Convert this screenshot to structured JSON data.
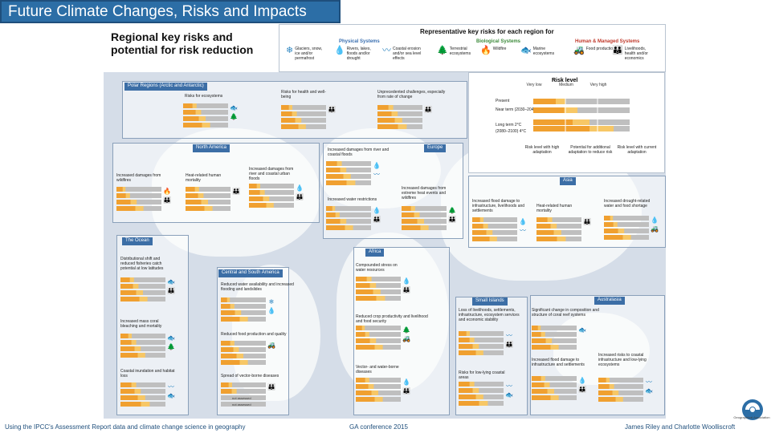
{
  "slide": {
    "title": "Future Climate Changes, Risks and Impacts",
    "heading": "Regional key risks and potential for risk reduction"
  },
  "key": {
    "title": "Representative key risks for each region for",
    "categories": [
      "Physical Systems",
      "Biological Systems",
      "Human & Managed Systems"
    ],
    "items": [
      {
        "icon": "snowflake-icon",
        "glyph": "❄",
        "color": "#2e86c1",
        "label": "Glaciers, snow, ice and/or permafrost"
      },
      {
        "icon": "water-drop-icon",
        "glyph": "💧",
        "color": "#2e86c1",
        "label": "Rivers, lakes, floods and/or drought"
      },
      {
        "icon": "coastal-icon",
        "glyph": "〰",
        "color": "#2e86c1",
        "label": "Coastal erosion and/or sea level effects"
      },
      {
        "icon": "tree-icon",
        "glyph": "🌲",
        "color": "#2e8b3a",
        "label": "Terrestrial ecosystems"
      },
      {
        "icon": "fire-icon",
        "glyph": "🔥",
        "color": "#2e8b3a",
        "label": "Wildfire"
      },
      {
        "icon": "fish-icon",
        "glyph": "🐟",
        "color": "#2e8b3a",
        "label": "Marine ecosystems"
      },
      {
        "icon": "tractor-icon",
        "glyph": "🚜",
        "color": "#c0392b",
        "label": "Food production"
      },
      {
        "icon": "people-icon",
        "glyph": "👪",
        "color": "#c0392b",
        "label": "Livelihoods, health and/or economics"
      }
    ]
  },
  "legend": {
    "title": "Risk level",
    "ticks": [
      "Very low",
      "Medium",
      "Very high"
    ],
    "rows": [
      "Present",
      "Near term (2030–2040)",
      "Long term 2°C",
      "(2080–2100) 4°C"
    ],
    "footers": [
      "Risk level with high adaptation",
      "Potential for additional adaptation to reduce risk",
      "Risk level with current adaptation"
    ]
  },
  "regions": [
    {
      "name": "Polar Regions (Arctic and Antarctic)",
      "risks": [
        "Risks for ecosystems",
        "Risks for health and well-being",
        "Unprecedented challenges, especially from rate of change"
      ]
    },
    {
      "name": "North America",
      "risks": [
        "Increased damages from wildfires",
        "Heat-related human mortality",
        "Increased damages from river and coastal urban floods"
      ]
    },
    {
      "name": "Europe",
      "risks": [
        "Increased damages from river and coastal floods",
        "Increased water restrictions",
        "Increased damages from extreme heat events and wildfires"
      ]
    },
    {
      "name": "Asia",
      "risks": [
        "Increased flood damage to infrastructure, livelihoods and settlements",
        "Heat-related human mortality",
        "Increased drought-related water and food shortage"
      ]
    },
    {
      "name": "The Ocean",
      "risks": [
        "Distributional shift and reduced fisheries catch potential at low latitudes",
        "Increased mass coral bleaching and mortality",
        "Coastal inundation and habitat loss"
      ]
    },
    {
      "name": "Central and South America",
      "risks": [
        "Reduced water availability and increased flooding and landslides",
        "Reduced food production and quality",
        "Spread of vector-borne diseases"
      ]
    },
    {
      "name": "Africa",
      "risks": [
        "Compounded stress on water resources",
        "Reduced crop productivity and livelihood and food security",
        "Vector- and water-borne diseases"
      ]
    },
    {
      "name": "Small Islands",
      "risks": [
        "Loss of livelihoods, settlements, infrastructure, ecosystem services and economic stability",
        "Risks for low-lying coastal areas"
      ]
    },
    {
      "name": "Australasia",
      "risks": [
        "Significant change in composition and structure of coral reef systems",
        "Increased flood damage to infrastructure and settlements",
        "Increased risks to coastal infrastructure and low-lying ecosystems"
      ]
    }
  ],
  "bar_labels": {
    "not_assessed": "not assessed"
  },
  "footer": {
    "left": "Using the IPCC's Assessment Report data and climate change science in geography",
    "center": "GA conference 2015",
    "right": "James Riley and Charlotte Woolliscroft"
  },
  "logo_text": "Geographical Association",
  "colors": {
    "title_bar": "#2c6ea6",
    "region_tag": "#3c6ea6",
    "bar_orange": "#f0a030",
    "bar_stripe": "#f7c766",
    "bar_grey": "#bfbfbf"
  }
}
